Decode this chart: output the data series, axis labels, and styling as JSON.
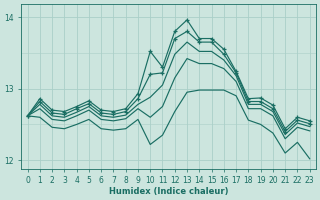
{
  "bg_color": "#cce5de",
  "grid_color_major": "#aacfc8",
  "grid_color_minor": "#bbdad4",
  "line_color": "#1a6e63",
  "xlabel": "Humidex (Indice chaleur)",
  "xlim": [
    -0.5,
    23.5
  ],
  "ylim": [
    11.88,
    14.18
  ],
  "yticks": [
    12,
    13,
    14
  ],
  "xticks": [
    0,
    1,
    2,
    3,
    4,
    5,
    6,
    7,
    8,
    9,
    10,
    11,
    12,
    13,
    14,
    15,
    16,
    17,
    18,
    19,
    20,
    21,
    22,
    23
  ],
  "series": [
    {
      "y": [
        12.62,
        12.86,
        12.7,
        12.68,
        12.75,
        12.83,
        12.7,
        12.68,
        12.72,
        12.93,
        13.52,
        13.3,
        13.8,
        13.96,
        13.7,
        13.7,
        13.55,
        13.24,
        12.86,
        12.87,
        12.77,
        12.44,
        12.6,
        12.55
      ],
      "marker": "+"
    },
    {
      "y": [
        12.62,
        12.82,
        12.66,
        12.64,
        12.72,
        12.79,
        12.66,
        12.64,
        12.68,
        12.86,
        13.2,
        13.22,
        13.7,
        13.8,
        13.65,
        13.65,
        13.48,
        13.22,
        12.82,
        12.82,
        12.72,
        12.4,
        12.56,
        12.51
      ],
      "marker": "+"
    },
    {
      "y": [
        12.62,
        12.78,
        12.62,
        12.6,
        12.67,
        12.75,
        12.62,
        12.6,
        12.63,
        12.78,
        12.88,
        13.05,
        13.48,
        13.65,
        13.52,
        13.52,
        13.4,
        13.18,
        12.78,
        12.78,
        12.68,
        12.36,
        12.52,
        12.47
      ],
      "marker": null
    },
    {
      "y": [
        12.62,
        12.72,
        12.57,
        12.55,
        12.62,
        12.7,
        12.57,
        12.55,
        12.58,
        12.72,
        12.6,
        12.75,
        13.15,
        13.42,
        13.35,
        13.35,
        13.28,
        13.1,
        12.72,
        12.72,
        12.62,
        12.3,
        12.46,
        12.41
      ],
      "marker": null
    },
    {
      "y": [
        12.62,
        12.6,
        12.46,
        12.44,
        12.5,
        12.57,
        12.44,
        12.42,
        12.44,
        12.57,
        12.22,
        12.35,
        12.68,
        12.95,
        12.98,
        12.98,
        12.98,
        12.9,
        12.56,
        12.5,
        12.38,
        12.1,
        12.25,
        12.02
      ],
      "marker": null
    }
  ],
  "figsize": [
    3.2,
    2.0
  ],
  "dpi": 100
}
